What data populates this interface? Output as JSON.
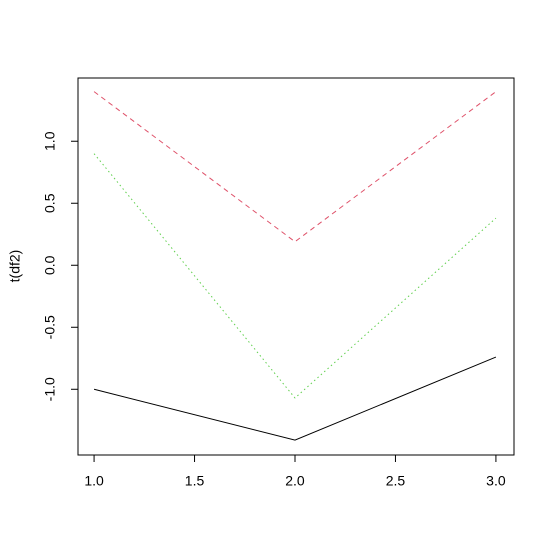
{
  "chart_data": {
    "type": "line",
    "ylabel": "t(df2)",
    "x": [
      1,
      2,
      3
    ],
    "series": [
      {
        "color": "#000000",
        "dash": "solid",
        "values": [
          -1.0,
          -1.41,
          -0.74
        ]
      },
      {
        "color": "#DF536B",
        "dash": "dashed",
        "values": [
          1.4,
          0.19,
          1.4
        ]
      },
      {
        "color": "#61D04F",
        "dash": "dotted",
        "values": [
          0.9,
          -1.07,
          0.38
        ]
      }
    ],
    "xlim": [
      0.92,
      3.09
    ],
    "ylim": [
      -1.53,
      1.51
    ],
    "xticks": [
      {
        "value": 1,
        "label": "1.0"
      },
      1.5,
      {
        "value": 2,
        "label": "2.0"
      },
      2.5,
      {
        "value": 3,
        "label": "3.0"
      }
    ],
    "yticks": [
      {
        "value": -1,
        "label": "-1.0"
      },
      -0.5,
      {
        "value": 0,
        "label": "0.0"
      },
      0.5,
      {
        "value": 1,
        "label": "1.0"
      }
    ]
  }
}
